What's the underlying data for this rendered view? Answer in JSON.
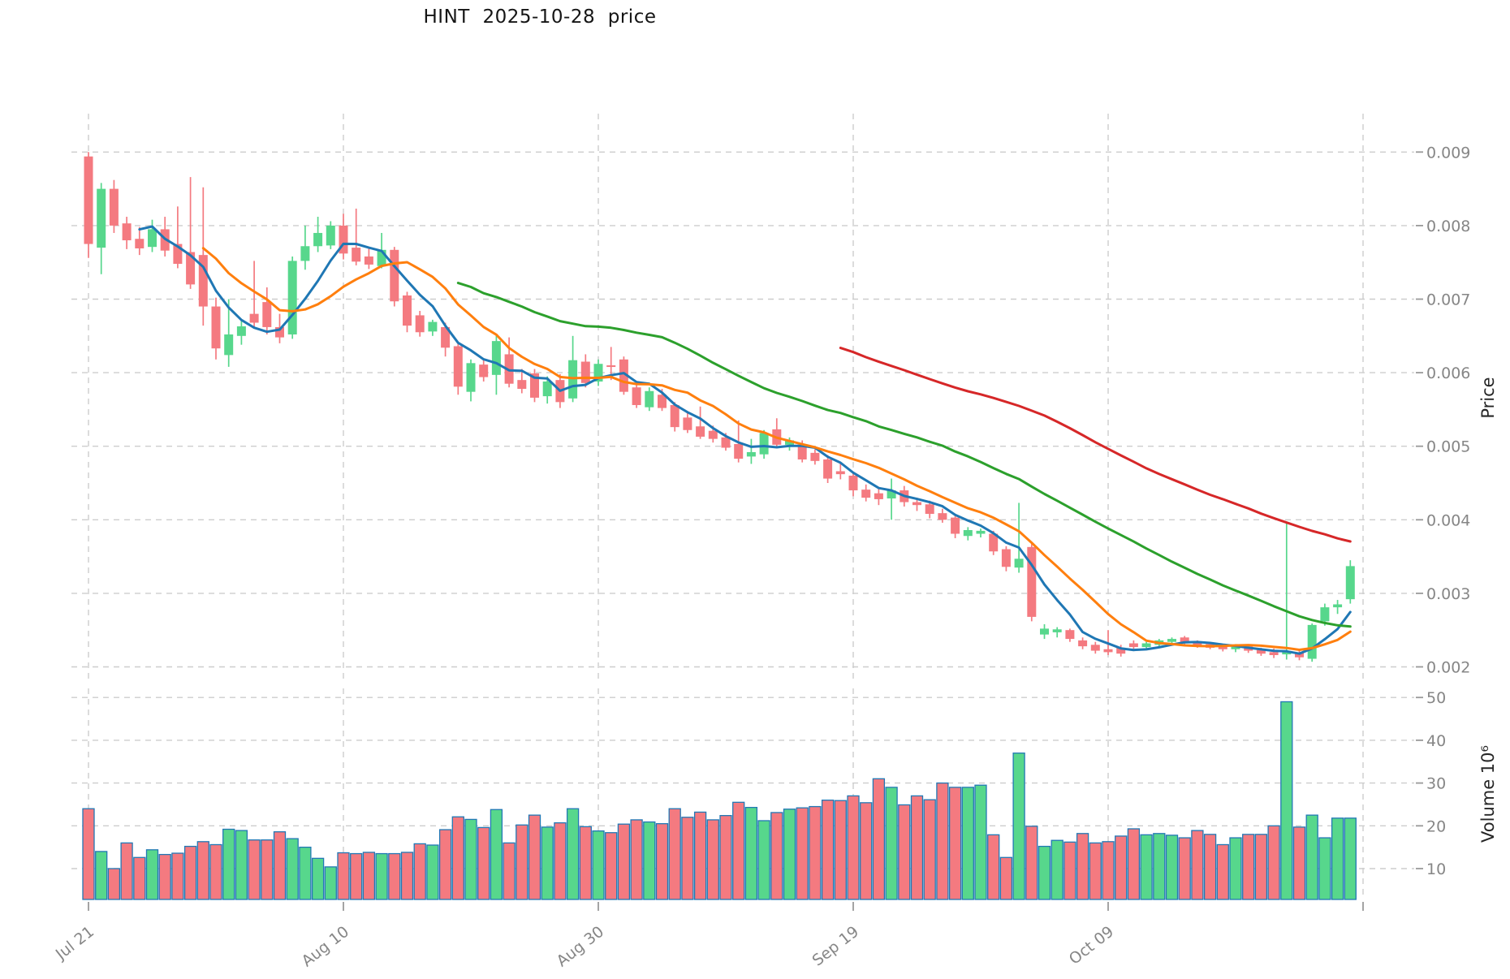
{
  "chart_data": {
    "type": "candlestick",
    "title": "HINT  2025-10-28  price",
    "symbol": "HINT",
    "as_of_date": "2025-10-28",
    "price_axis": {
      "label": "Price",
      "side": "right",
      "tick_values": [
        0.009,
        0.008,
        0.007,
        0.006,
        0.005,
        0.004,
        0.003,
        0.002
      ],
      "range": [
        0.0018,
        0.00952
      ],
      "grid": true
    },
    "volume_axis": {
      "label": "Volume  10⁶",
      "side": "right",
      "tick_values": [
        50,
        40,
        30,
        20,
        10
      ],
      "unit_multiplier": 1000000,
      "range": [
        2.5,
        52
      ],
      "grid": true
    },
    "x_axis": {
      "tick_labels": [
        "Jul 21",
        "Aug 10",
        "Aug 30",
        "Sep 19",
        "Oct 09"
      ],
      "tick_dates": [
        "2025-07-21",
        "2025-08-10",
        "2025-08-30",
        "2025-09-19",
        "2025-10-09"
      ],
      "unlabeled_gridline_date": "2025-10-29",
      "tick_label_rotation_deg": 38,
      "grid": true
    },
    "moving_averages": [
      {
        "window": 5,
        "color": "#1f77b4"
      },
      {
        "window": 10,
        "color": "#ff7f0e"
      },
      {
        "window": 30,
        "color": "#2ca02c"
      },
      {
        "window": 60,
        "color": "#d62728"
      }
    ],
    "colors": {
      "up_candle": "#57d78c",
      "down_candle": "#f47a80",
      "volume_bar_edge": "#2278b5",
      "grid": "#cdcdcd",
      "tick_text": "#868686",
      "tick_mark": "#9a9a9a",
      "axis_label_text": "#262626",
      "title_text": "#151515",
      "background": "#ffffff"
    },
    "series_columns": [
      "date",
      "open",
      "high",
      "low",
      "close",
      "volume_millions"
    ],
    "candles": [
      [
        "2025-07-21",
        0.00894,
        0.009,
        0.00756,
        0.00775,
        24.0
      ],
      [
        "2025-07-22",
        0.0077,
        0.00858,
        0.00734,
        0.0085,
        14.0
      ],
      [
        "2025-07-23",
        0.0085,
        0.00862,
        0.0079,
        0.008,
        10.0
      ],
      [
        "2025-07-24",
        0.00803,
        0.00812,
        0.00768,
        0.0078,
        16.0
      ],
      [
        "2025-07-25",
        0.00782,
        0.00798,
        0.0076,
        0.00769,
        12.6
      ],
      [
        "2025-07-26",
        0.00771,
        0.00808,
        0.00764,
        0.00795,
        14.4
      ],
      [
        "2025-07-27",
        0.00795,
        0.00812,
        0.00758,
        0.00766,
        13.3
      ],
      [
        "2025-07-28",
        0.00775,
        0.00826,
        0.00742,
        0.00748,
        13.6
      ],
      [
        "2025-07-29",
        0.00764,
        0.00866,
        0.00714,
        0.0072,
        15.2
      ],
      [
        "2025-07-30",
        0.0076,
        0.00852,
        0.00664,
        0.0069,
        16.3
      ],
      [
        "2025-07-31",
        0.0069,
        0.00702,
        0.00618,
        0.00633,
        15.6
      ],
      [
        "2025-08-01",
        0.00624,
        0.007,
        0.00608,
        0.00652,
        19.2
      ],
      [
        "2025-08-02",
        0.0065,
        0.00672,
        0.00638,
        0.00663,
        18.9
      ],
      [
        "2025-08-03",
        0.0068,
        0.00752,
        0.0066,
        0.00668,
        16.7
      ],
      [
        "2025-08-04",
        0.00696,
        0.00716,
        0.00652,
        0.00662,
        16.7
      ],
      [
        "2025-08-05",
        0.00662,
        0.0068,
        0.0064,
        0.00648,
        18.6
      ],
      [
        "2025-08-06",
        0.00652,
        0.00758,
        0.00646,
        0.00752,
        17.0
      ],
      [
        "2025-08-07",
        0.00752,
        0.008,
        0.0074,
        0.00772,
        15.0
      ],
      [
        "2025-08-08",
        0.00772,
        0.00812,
        0.00764,
        0.0079,
        12.4
      ],
      [
        "2025-08-09",
        0.00773,
        0.00806,
        0.00768,
        0.008,
        10.4
      ],
      [
        "2025-08-10",
        0.008,
        0.00816,
        0.00754,
        0.00762,
        13.7
      ],
      [
        "2025-08-11",
        0.0077,
        0.00823,
        0.00746,
        0.00751,
        13.5
      ],
      [
        "2025-08-12",
        0.00758,
        0.0077,
        0.00741,
        0.00747,
        13.8
      ],
      [
        "2025-08-13",
        0.00745,
        0.0079,
        0.00742,
        0.00767,
        13.5
      ],
      [
        "2025-08-14",
        0.00767,
        0.00771,
        0.0069,
        0.00697,
        13.5
      ],
      [
        "2025-08-15",
        0.00705,
        0.0071,
        0.00655,
        0.00664,
        13.8
      ],
      [
        "2025-08-16",
        0.00678,
        0.00684,
        0.00649,
        0.00655,
        15.8
      ],
      [
        "2025-08-17",
        0.00656,
        0.00672,
        0.0065,
        0.00669,
        15.5
      ],
      [
        "2025-08-18",
        0.00662,
        0.00668,
        0.00622,
        0.00634,
        19.1
      ],
      [
        "2025-08-19",
        0.00636,
        0.00641,
        0.0057,
        0.00581,
        22.1
      ],
      [
        "2025-08-20",
        0.00574,
        0.00618,
        0.00561,
        0.00613,
        21.5
      ],
      [
        "2025-08-21",
        0.00611,
        0.00618,
        0.00588,
        0.00594,
        19.6
      ],
      [
        "2025-08-22",
        0.00597,
        0.00653,
        0.0057,
        0.00643,
        23.8
      ],
      [
        "2025-08-23",
        0.00625,
        0.00648,
        0.0058,
        0.00585,
        16.0
      ],
      [
        "2025-08-24",
        0.0059,
        0.00605,
        0.00572,
        0.00578,
        20.2
      ],
      [
        "2025-08-25",
        0.00599,
        0.00605,
        0.0056,
        0.00566,
        22.5
      ],
      [
        "2025-08-26",
        0.00568,
        0.00595,
        0.00558,
        0.00588,
        19.7
      ],
      [
        "2025-08-27",
        0.0059,
        0.00598,
        0.00552,
        0.0056,
        20.7
      ],
      [
        "2025-08-28",
        0.00565,
        0.0065,
        0.0056,
        0.00617,
        24.0
      ],
      [
        "2025-08-29",
        0.00615,
        0.00625,
        0.0058,
        0.00586,
        19.8
      ],
      [
        "2025-08-30",
        0.00588,
        0.00618,
        0.00582,
        0.00612,
        18.8
      ],
      [
        "2025-08-31",
        0.0061,
        0.00635,
        0.0059,
        0.00608,
        18.4
      ],
      [
        "2025-09-01",
        0.00618,
        0.00622,
        0.0057,
        0.00574,
        20.4
      ],
      [
        "2025-09-02",
        0.0058,
        0.00585,
        0.00552,
        0.00556,
        21.4
      ],
      [
        "2025-09-03",
        0.00553,
        0.0058,
        0.00548,
        0.00575,
        20.9
      ],
      [
        "2025-09-04",
        0.0057,
        0.00578,
        0.00548,
        0.00552,
        20.5
      ],
      [
        "2025-09-05",
        0.00556,
        0.0056,
        0.0052,
        0.00526,
        24.0
      ],
      [
        "2025-09-06",
        0.00539,
        0.00545,
        0.00518,
        0.00522,
        22.0
      ],
      [
        "2025-09-07",
        0.00527,
        0.00554,
        0.0051,
        0.00513,
        23.2
      ],
      [
        "2025-09-08",
        0.00521,
        0.00528,
        0.00505,
        0.0051,
        21.4
      ],
      [
        "2025-09-09",
        0.00512,
        0.00518,
        0.00494,
        0.00498,
        22.4
      ],
      [
        "2025-09-10",
        0.00503,
        0.00535,
        0.00478,
        0.00483,
        25.5
      ],
      [
        "2025-09-11",
        0.00486,
        0.0051,
        0.00476,
        0.00492,
        24.3
      ],
      [
        "2025-09-12",
        0.00489,
        0.00522,
        0.00483,
        0.00518,
        21.2
      ],
      [
        "2025-09-13",
        0.00523,
        0.00538,
        0.00498,
        0.00502,
        23.1
      ],
      [
        "2025-09-14",
        0.00502,
        0.00512,
        0.00494,
        0.00508,
        23.9
      ],
      [
        "2025-09-15",
        0.00502,
        0.00508,
        0.00478,
        0.00482,
        24.2
      ],
      [
        "2025-09-16",
        0.00491,
        0.00496,
        0.00475,
        0.0048,
        24.5
      ],
      [
        "2025-09-17",
        0.00482,
        0.00488,
        0.0045,
        0.00456,
        26.0
      ],
      [
        "2025-09-18",
        0.00466,
        0.00478,
        0.00455,
        0.00462,
        25.9
      ],
      [
        "2025-09-19",
        0.0046,
        0.00465,
        0.00432,
        0.0044,
        27.0
      ],
      [
        "2025-09-20",
        0.00441,
        0.00448,
        0.00425,
        0.0043,
        25.4
      ],
      [
        "2025-09-21",
        0.00436,
        0.00444,
        0.0042,
        0.00428,
        31.0
      ],
      [
        "2025-09-22",
        0.00429,
        0.00456,
        0.004,
        0.0044,
        29.0
      ],
      [
        "2025-09-23",
        0.0044,
        0.00446,
        0.00418,
        0.00424,
        24.9
      ],
      [
        "2025-09-24",
        0.00424,
        0.0043,
        0.00412,
        0.0042,
        27.0
      ],
      [
        "2025-09-25",
        0.00421,
        0.00426,
        0.00402,
        0.00408,
        26.1
      ],
      [
        "2025-09-26",
        0.00409,
        0.00415,
        0.00396,
        0.004,
        30.0
      ],
      [
        "2025-09-27",
        0.00403,
        0.00408,
        0.00375,
        0.00381,
        29.0
      ],
      [
        "2025-09-28",
        0.00378,
        0.0039,
        0.00372,
        0.00386,
        29.0
      ],
      [
        "2025-09-29",
        0.00381,
        0.00388,
        0.00376,
        0.00385,
        29.5
      ],
      [
        "2025-09-30",
        0.00381,
        0.00385,
        0.00352,
        0.00357,
        17.9
      ],
      [
        "2025-10-01",
        0.0036,
        0.00364,
        0.0033,
        0.00336,
        12.6
      ],
      [
        "2025-10-02",
        0.00335,
        0.00423,
        0.00328,
        0.00347,
        37.0
      ],
      [
        "2025-10-03",
        0.00363,
        0.00368,
        0.00262,
        0.00268,
        19.9
      ],
      [
        "2025-10-04",
        0.00244,
        0.00258,
        0.00238,
        0.00252,
        15.2
      ],
      [
        "2025-10-05",
        0.00247,
        0.00254,
        0.0024,
        0.00251,
        16.6
      ],
      [
        "2025-10-06",
        0.0025,
        0.00252,
        0.00234,
        0.00238,
        16.2
      ],
      [
        "2025-10-07",
        0.00236,
        0.0024,
        0.00224,
        0.00228,
        18.2
      ],
      [
        "2025-10-08",
        0.0023,
        0.00234,
        0.00218,
        0.00222,
        16.0
      ],
      [
        "2025-10-09",
        0.00224,
        0.0025,
        0.00216,
        0.0022,
        16.3
      ],
      [
        "2025-10-10",
        0.00226,
        0.0023,
        0.00214,
        0.00218,
        17.6
      ],
      [
        "2025-10-11",
        0.00232,
        0.00236,
        0.00224,
        0.00227,
        19.3
      ],
      [
        "2025-10-12",
        0.00227,
        0.00234,
        0.00224,
        0.00232,
        17.9
      ],
      [
        "2025-10-13",
        0.0023,
        0.00238,
        0.00228,
        0.00236,
        18.2
      ],
      [
        "2025-10-14",
        0.00234,
        0.0024,
        0.00232,
        0.00238,
        17.8
      ],
      [
        "2025-10-15",
        0.0024,
        0.00242,
        0.0023,
        0.00234,
        17.2
      ],
      [
        "2025-10-16",
        0.00234,
        0.00236,
        0.00226,
        0.00229,
        18.9
      ],
      [
        "2025-10-17",
        0.00231,
        0.00233,
        0.00224,
        0.00226,
        18.0
      ],
      [
        "2025-10-18",
        0.00228,
        0.0023,
        0.00221,
        0.00224,
        15.6
      ],
      [
        "2025-10-19",
        0.00224,
        0.00231,
        0.0022,
        0.00229,
        17.2
      ],
      [
        "2025-10-20",
        0.00228,
        0.0023,
        0.00219,
        0.00222,
        18.0
      ],
      [
        "2025-10-21",
        0.00223,
        0.00226,
        0.00215,
        0.00218,
        18.0
      ],
      [
        "2025-10-22",
        0.0022,
        0.00225,
        0.00212,
        0.00216,
        20.0
      ],
      [
        "2025-10-23",
        0.00217,
        0.00396,
        0.0021,
        0.00221,
        49.0
      ],
      [
        "2025-10-24",
        0.00219,
        0.00222,
        0.00209,
        0.00213,
        19.7
      ],
      [
        "2025-10-25",
        0.00211,
        0.00259,
        0.00207,
        0.00257,
        22.5
      ],
      [
        "2025-10-26",
        0.00262,
        0.00286,
        0.00256,
        0.00281,
        17.2
      ],
      [
        "2025-10-27",
        0.00281,
        0.00291,
        0.00272,
        0.00285,
        21.8
      ],
      [
        "2025-10-28",
        0.00292,
        0.00345,
        0.00286,
        0.00337,
        21.8
      ]
    ]
  }
}
